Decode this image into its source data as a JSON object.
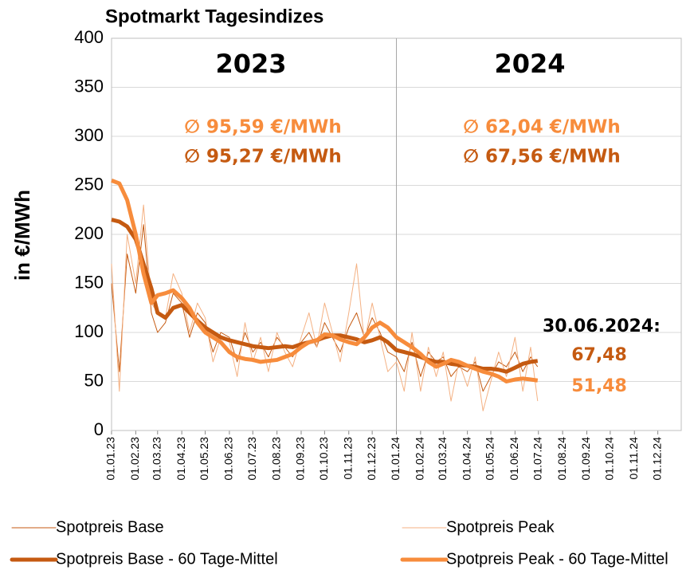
{
  "chart_data": {
    "type": "line",
    "title": "Spotmarkt Tagesindizes",
    "y_label": "in €/MWh",
    "annotations": [
      "2023",
      "2024",
      "∅ 95,59 €/MWh",
      "∅ 95,27 €/MWh",
      "∅ 62,04 €/MWh",
      "∅ 67,56 €/MWh",
      "30.06.2024:",
      "67,48",
      "51,48"
    ],
    "x": [
      "2023-01-01",
      "2023-01-11",
      "2023-01-21",
      "2023-02-01",
      "2023-02-11",
      "2023-02-21",
      "2023-03-01",
      "2023-03-11",
      "2023-03-21",
      "2023-04-01",
      "2023-04-11",
      "2023-04-21",
      "2023-05-01",
      "2023-05-11",
      "2023-05-21",
      "2023-06-01",
      "2023-06-11",
      "2023-06-21",
      "2023-07-01",
      "2023-07-11",
      "2023-07-21",
      "2023-08-01",
      "2023-08-11",
      "2023-08-21",
      "2023-09-01",
      "2023-09-11",
      "2023-09-21",
      "2023-10-01",
      "2023-10-11",
      "2023-10-21",
      "2023-11-01",
      "2023-11-11",
      "2023-11-21",
      "2023-12-01",
      "2023-12-11",
      "2023-12-21",
      "2024-01-01",
      "2024-01-11",
      "2024-01-21",
      "2024-02-01",
      "2024-02-11",
      "2024-02-21",
      "2024-03-01",
      "2024-03-11",
      "2024-03-21",
      "2024-04-01",
      "2024-04-11",
      "2024-04-21",
      "2024-05-01",
      "2024-05-11",
      "2024-05-21",
      "2024-06-01",
      "2024-06-11",
      "2024-06-21",
      "2024-06-30"
    ],
    "series": [
      {
        "name": "Spotpreis Base",
        "color": "#c55a11",
        "width": 1,
        "values": [
          150,
          60,
          180,
          140,
          210,
          120,
          100,
          110,
          140,
          130,
          95,
          120,
          110,
          80,
          100,
          95,
          70,
          100,
          80,
          90,
          75,
          95,
          85,
          75,
          90,
          100,
          85,
          110,
          95,
          80,
          105,
          120,
          95,
          115,
          100,
          80,
          75,
          60,
          90,
          55,
          80,
          70,
          75,
          55,
          65,
          60,
          70,
          40,
          55,
          70,
          65,
          80,
          60,
          75,
          65
        ]
      },
      {
        "name": "Spotpreis Peak",
        "color": "#f4b183",
        "width": 1,
        "values": [
          170,
          40,
          200,
          150,
          230,
          130,
          120,
          115,
          160,
          140,
          100,
          130,
          115,
          70,
          95,
          90,
          55,
          110,
          70,
          95,
          60,
          100,
          80,
          65,
          95,
          120,
          85,
          130,
          100,
          70,
          120,
          170,
          90,
          130,
          95,
          60,
          70,
          40,
          100,
          40,
          85,
          55,
          80,
          30,
          70,
          45,
          75,
          20,
          50,
          80,
          55,
          95,
          40,
          85,
          30
        ]
      },
      {
        "name": "Spotpreis Base - 60 Tage-Mittel",
        "color": "#c55a11",
        "width": 5,
        "values": [
          215,
          213,
          208,
          195,
          170,
          145,
          120,
          115,
          125,
          128,
          120,
          112,
          105,
          100,
          95,
          92,
          90,
          88,
          86,
          85,
          84,
          85,
          86,
          85,
          88,
          90,
          92,
          95,
          97,
          97,
          95,
          93,
          90,
          92,
          95,
          90,
          82,
          80,
          78,
          75,
          72,
          70,
          70,
          68,
          67,
          66,
          65,
          63,
          63,
          62,
          60,
          64,
          68,
          70,
          71
        ]
      },
      {
        "name": "Spotpreis Peak - 60 Tage-Mittel",
        "color": "#f78c3c",
        "width": 5,
        "values": [
          255,
          252,
          235,
          200,
          160,
          130,
          138,
          140,
          143,
          135,
          125,
          110,
          100,
          95,
          90,
          80,
          75,
          73,
          72,
          70,
          71,
          72,
          75,
          78,
          85,
          90,
          92,
          98,
          97,
          93,
          90,
          88,
          95,
          105,
          110,
          105,
          95,
          90,
          85,
          78,
          70,
          65,
          68,
          72,
          70,
          66,
          63,
          60,
          58,
          55,
          50,
          52,
          53,
          52,
          51
        ]
      }
    ],
    "xlim": [
      "2023-01-01",
      "2024-12-31"
    ],
    "xticks": [
      {
        "value": "2023-01-01",
        "label": "01.01.23"
      },
      {
        "value": "2023-02-01",
        "label": "01.02.23"
      },
      {
        "value": "2023-03-01",
        "label": "01.03.23"
      },
      {
        "value": "2023-04-01",
        "label": "01.04.23"
      },
      {
        "value": "2023-05-01",
        "label": "01.05.23"
      },
      {
        "value": "2023-06-01",
        "label": "01.06.23"
      },
      {
        "value": "2023-07-01",
        "label": "01.07.23"
      },
      {
        "value": "2023-08-01",
        "label": "01.08.23"
      },
      {
        "value": "2023-09-01",
        "label": "01.09.23"
      },
      {
        "value": "2023-10-01",
        "label": "01.10.23"
      },
      {
        "value": "2023-11-01",
        "label": "01.11.23"
      },
      {
        "value": "2023-12-01",
        "label": "01.12.23"
      },
      {
        "value": "2024-01-01",
        "label": "01.01.24"
      },
      {
        "value": "2024-02-01",
        "label": "01.02.24"
      },
      {
        "value": "2024-03-01",
        "label": "01.03.24"
      },
      {
        "value": "2024-04-01",
        "label": "01.04.24"
      },
      {
        "value": "2024-05-01",
        "label": "01.05.24"
      },
      {
        "value": "2024-06-01",
        "label": "01.06.24"
      },
      {
        "value": "2024-07-01",
        "label": "01.07.24"
      },
      {
        "value": "2024-08-01",
        "label": "01.08.24"
      },
      {
        "value": "2024-09-01",
        "label": "01.09.24"
      },
      {
        "value": "2024-10-01",
        "label": "01.10.24"
      },
      {
        "value": "2024-11-01",
        "label": "01.11.24"
      },
      {
        "value": "2024-12-01",
        "label": "01.12.24"
      }
    ],
    "ylim": [
      0,
      400
    ],
    "yticks": [
      0,
      50,
      100,
      150,
      200,
      250,
      300,
      350,
      400
    ],
    "grid": true,
    "divider": "2024-01-01"
  }
}
